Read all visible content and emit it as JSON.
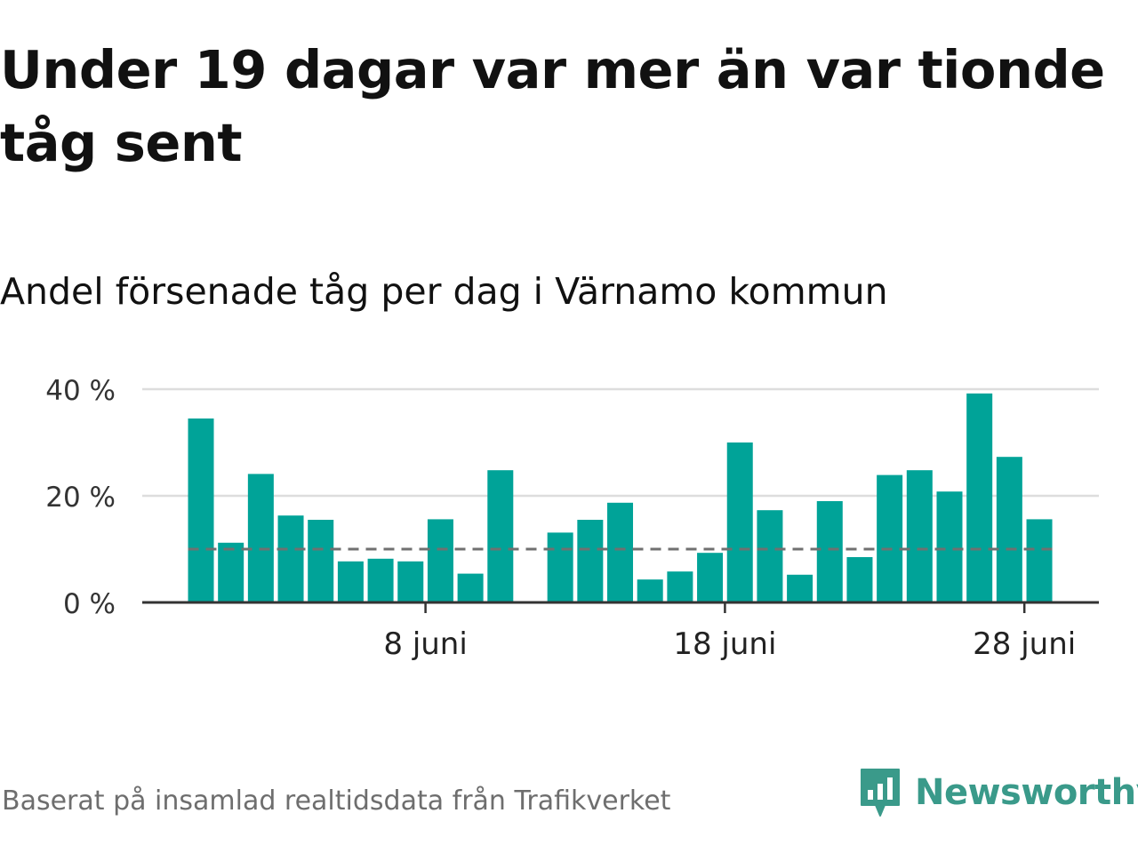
{
  "header": {
    "title": "Under 19 dagar var mer än var tionde tåg sent",
    "subtitle": "Andel försenade tåg per dag i Värnamo kommun"
  },
  "footer": {
    "source": "Baserat på insamlad realtidsdata från Trafikverket"
  },
  "brand": {
    "name": "Newsworthy",
    "logo_icon": "bar-chart-speech-bubble-icon",
    "color": "#3a9a8a"
  },
  "colors": {
    "bar": "#00a398",
    "reference_line": "#707070",
    "grid": "#dddddd",
    "axis": "#333333"
  },
  "chart_data": {
    "type": "bar",
    "x": [
      1,
      2,
      3,
      4,
      5,
      6,
      7,
      8,
      9,
      10,
      11,
      12,
      13,
      14,
      15,
      16,
      17,
      18,
      19,
      20,
      21,
      22,
      23,
      24,
      25,
      26,
      27,
      28,
      29
    ],
    "values": [
      34.5,
      11.2,
      24.1,
      16.3,
      15.5,
      7.7,
      8.2,
      7.7,
      15.6,
      5.4,
      24.8,
      null,
      13.1,
      15.5,
      18.7,
      4.3,
      5.8,
      9.3,
      30,
      17.3,
      5.2,
      19,
      8.5,
      23.9,
      24.8,
      20.8,
      39.2,
      27.3,
      15.6
    ],
    "x_ticks": [
      {
        "value": 8,
        "label": "8 juni"
      },
      {
        "value": 18,
        "label": "18 juni"
      },
      {
        "value": 28,
        "label": "28 juni"
      }
    ],
    "y_ticks": [
      {
        "value": 0,
        "label": "0 %"
      },
      {
        "value": 20,
        "label": "20 %"
      },
      {
        "value": 40,
        "label": "40 %"
      }
    ],
    "ylim": [
      0,
      40
    ],
    "reference_line": 10,
    "grid": true,
    "legend": "none"
  }
}
